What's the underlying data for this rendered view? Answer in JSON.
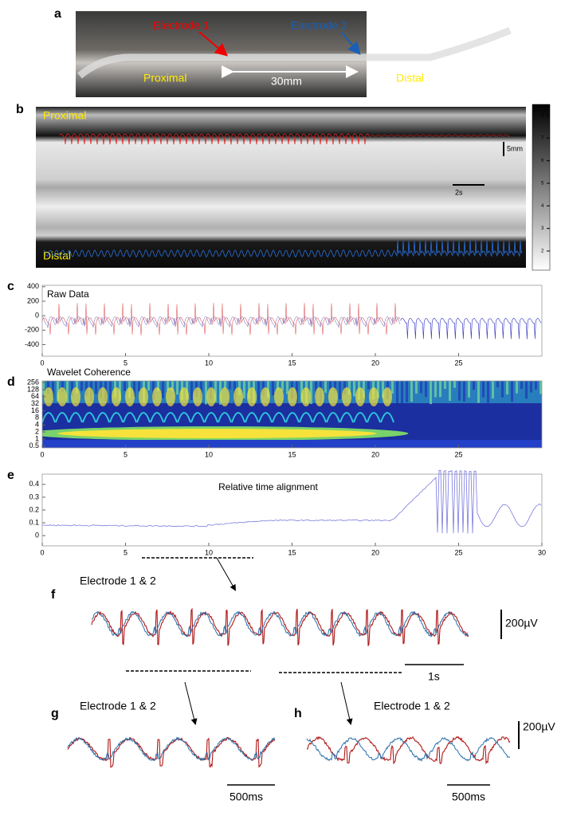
{
  "panel_a": {
    "letter": "a",
    "electrode_1": "Electrode 1",
    "electrode_2": "Electrode 2",
    "proximal": "Proximal",
    "distal": "Distal",
    "distance": "30mm"
  },
  "panel_b": {
    "letter": "b",
    "proximal": "Proximal",
    "distal": "Distal",
    "scale_y": "5mm",
    "scale_x": "2s",
    "colorbar_ticks": [
      8,
      7,
      6,
      5,
      4,
      3,
      2
    ]
  },
  "chart_data": [
    {
      "type": "line",
      "letter": "c",
      "title": "Raw Data",
      "xlim": [
        0,
        30
      ],
      "xticks": [
        0,
        5,
        10,
        15,
        20,
        25
      ],
      "ylim": [
        -560,
        420
      ],
      "yticks": [
        400,
        200,
        0,
        -200,
        -400
      ]
    },
    {
      "type": "heatmap",
      "letter": "d",
      "title": "Wavelet Coherence",
      "log": true,
      "xlim": [
        0,
        30
      ],
      "xticks": [
        0,
        5,
        10,
        15,
        20,
        25
      ],
      "ylim": [
        0.42,
        300
      ],
      "yticks": [
        256,
        128,
        64,
        32,
        16,
        8,
        4,
        2,
        1,
        0.5
      ]
    },
    {
      "type": "line",
      "letter": "e",
      "title": "Relative time alignment",
      "xlim": [
        0,
        30
      ],
      "xticks": [
        0,
        5,
        10,
        15,
        20,
        25,
        30
      ],
      "ylim": [
        -0.08,
        0.48
      ],
      "yticks": [
        0,
        0.1,
        0.2,
        0.3,
        0.4
      ]
    }
  ],
  "panel_f": {
    "letter": "f",
    "label": "Electrode 1 & 2",
    "scale_v": "200µV",
    "scale_t": "1s"
  },
  "panel_g": {
    "letter": "g",
    "label": "Electrode 1 & 2",
    "scale_t": "500ms"
  },
  "panel_h": {
    "letter": "h",
    "label": "Electrode 1 & 2",
    "scale_v": "200µV",
    "scale_t": "500ms"
  }
}
